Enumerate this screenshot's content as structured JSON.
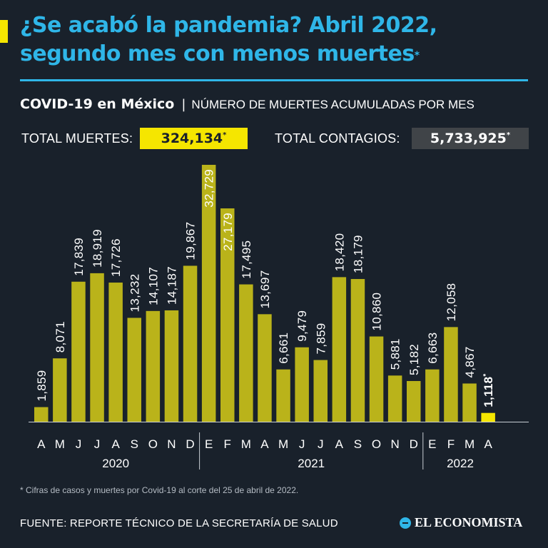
{
  "header": {
    "title_line1": "¿Se acabó la pandemia? Abril 2022,",
    "title_line2": "segundo mes con menos muertes",
    "title_mark": "*",
    "subtitle_bold": "COVID-19 en México",
    "subtitle_sep": "|",
    "subtitle_rest": "NÚMERO DE MUERTES ACUMULADAS POR MES"
  },
  "totals": {
    "deaths_label": "TOTAL MUERTES:",
    "deaths_value": "324,134",
    "cases_label": "TOTAL CONTAGIOS:",
    "cases_value": "5,733,925",
    "mark": "*"
  },
  "chart_data": {
    "type": "bar",
    "categories": [
      "A",
      "M",
      "J",
      "J",
      "A",
      "S",
      "O",
      "N",
      "D",
      "E",
      "F",
      "M",
      "A",
      "M",
      "J",
      "J",
      "A",
      "S",
      "O",
      "N",
      "D",
      "E",
      "F",
      "M",
      "A"
    ],
    "values": [
      1859,
      8071,
      17839,
      18919,
      17726,
      13232,
      14107,
      14187,
      19867,
      32729,
      27179,
      17495,
      13697,
      6661,
      9479,
      7859,
      18420,
      18179,
      10860,
      5881,
      5182,
      6663,
      12058,
      4867,
      1118
    ],
    "value_labels": [
      "1,859",
      "8,071",
      "17,839",
      "18,919",
      "17,726",
      "13,232",
      "14,107",
      "14,187",
      "19,867",
      "32,729",
      "27,179",
      "17,495",
      "13,697",
      "6,661",
      "9,479",
      "7,859",
      "18,420",
      "18,179",
      "10,860",
      "5,881",
      "5,182",
      "6,663",
      "12,058",
      "4,867",
      "1,118"
    ],
    "year_groups": [
      {
        "label": "2020",
        "start": 0,
        "end": 8
      },
      {
        "label": "2021",
        "start": 9,
        "end": 20
      },
      {
        "label": "2022",
        "start": 21,
        "end": 24
      }
    ],
    "highlight_index": 24,
    "highlight_mark": "*",
    "ylim": [
      0,
      33000
    ],
    "colors": {
      "bar": "#bab31a",
      "highlight": "#f5e600",
      "axis": "#c8ced4",
      "label": "#ffffff",
      "inner_label": "#ffffff"
    }
  },
  "footer": {
    "footnote": "* Cifras de casos y muertes por Covid-19 al corte del 25 de abril de 2022.",
    "source": "FUENTE: REPORTE TÉCNICO DE LA SECRETARÍA DE SALUD",
    "logo_text": "EL ECONOMISTA"
  }
}
